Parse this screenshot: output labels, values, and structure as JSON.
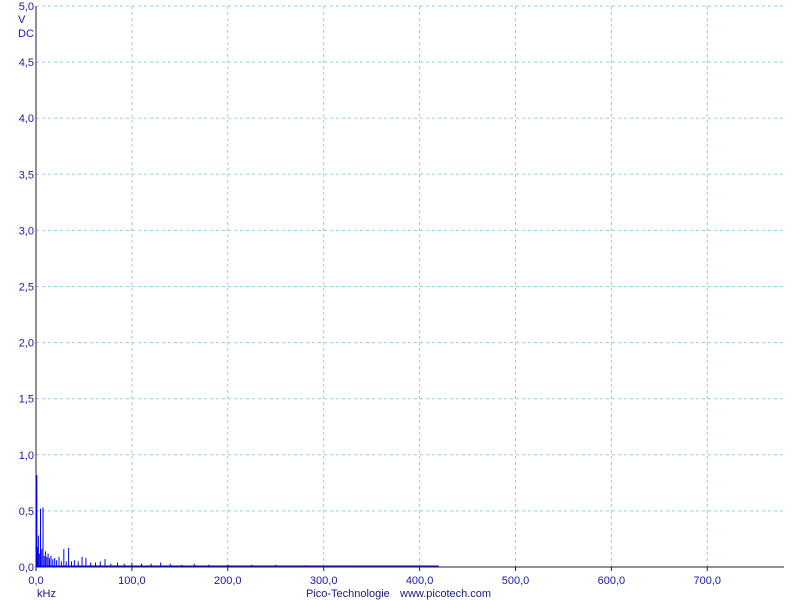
{
  "chart_data": {
    "type": "bar",
    "y_unit_lines": [
      "V",
      "DC"
    ],
    "xlabel": "kHz",
    "x_range": [
      0,
      780
    ],
    "ylim": [
      0,
      5
    ],
    "x_ticks": [
      "0,0",
      "100,0",
      "200,0",
      "300,0",
      "400,0",
      "500,0",
      "600,0",
      "700,0"
    ],
    "x_tick_values": [
      0,
      100,
      200,
      300,
      400,
      500,
      600,
      700
    ],
    "y_ticks": [
      "0,0",
      "0,5",
      "1,0",
      "1,5",
      "2,0",
      "2,5",
      "3,0",
      "3,5",
      "4,0",
      "4,5",
      "5,0"
    ],
    "y_tick_values": [
      0,
      0.5,
      1,
      1.5,
      2,
      2.5,
      3,
      3.5,
      4,
      4.5,
      5
    ],
    "grid": true,
    "colors": {
      "trace": "#0000ee",
      "grid": "#8fd0e0",
      "text": "#1a1aa8"
    },
    "x": [
      0.3,
      0.9,
      1.6,
      2.5,
      3.5,
      4.7,
      6.0,
      7.3,
      8.6,
      10.0,
      11.3,
      12.6,
      14.0,
      15.6,
      17.5,
      19.5,
      21.5,
      24.0,
      26.5,
      29.0,
      31.5,
      34.0,
      37.0,
      40.0,
      44.0,
      48.0,
      52.0,
      57.0,
      62.0,
      67.0,
      72.0,
      78.0,
      85.0,
      92.0,
      100.0,
      110.0,
      120.0,
      130.0,
      140.0,
      152.0,
      165.0,
      180.0,
      200.0,
      225.0,
      250.0,
      280.0,
      320.0,
      360.0,
      400.0
    ],
    "values": [
      0.65,
      0.82,
      0.18,
      0.28,
      0.12,
      0.52,
      0.16,
      0.53,
      0.1,
      0.14,
      0.09,
      0.12,
      0.08,
      0.1,
      0.07,
      0.08,
      0.06,
      0.09,
      0.05,
      0.16,
      0.05,
      0.17,
      0.05,
      0.06,
      0.05,
      0.09,
      0.08,
      0.04,
      0.04,
      0.05,
      0.07,
      0.03,
      0.04,
      0.03,
      0.04,
      0.03,
      0.03,
      0.04,
      0.03,
      0.02,
      0.03,
      0.02,
      0.02,
      0.02,
      0.02,
      0.015,
      0.01,
      0.01,
      0.01
    ]
  },
  "footer": {
    "brand": "Pico-Technologie",
    "website": "www.picotech.com"
  }
}
